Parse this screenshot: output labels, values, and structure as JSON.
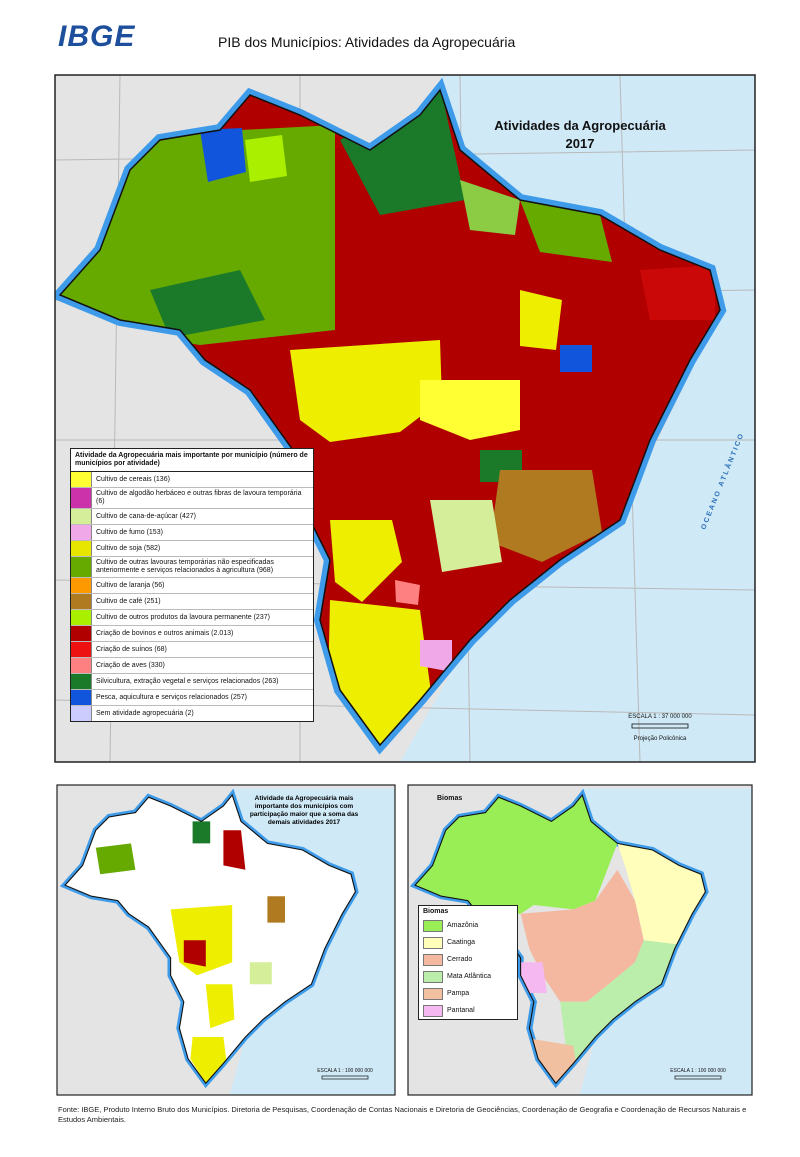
{
  "header": {
    "logo": "IBGE",
    "title": "PIB dos Municípios: Atividades da Agropecuária"
  },
  "main_map": {
    "title": "Atividades da Agropecuária",
    "year": "2017",
    "legend_title": "Atividade da Agropecuária mais importante por município (número de municípios por atividade)",
    "legend": [
      {
        "label": "Cultivo de cereais (136)",
        "color": "#ffff33"
      },
      {
        "label": "Cultivo de algodão herbáceo e outras fibras de lavoura temporária (6)",
        "color": "#cc33aa"
      },
      {
        "label": "Cultivo de cana-de-açúcar (427)",
        "color": "#d4ee9a"
      },
      {
        "label": "Cultivo de fumo (153)",
        "color": "#f0a8e8"
      },
      {
        "label": "Cultivo de soja (582)",
        "color": "#e6e600"
      },
      {
        "label": "Cultivo de outras lavouras temporárias não especificadas anteriormente e serviços relacionados à agricultura (968)",
        "color": "#66aa00"
      },
      {
        "label": "Cultivo de laranja (56)",
        "color": "#ff9900"
      },
      {
        "label": "Cultivo de café (251)",
        "color": "#b07a20"
      },
      {
        "label": "Cultivo de outros produtos da lavoura permanente (237)",
        "color": "#aaee00"
      },
      {
        "label": "Criação de bovinos e outros animais (2.013)",
        "color": "#b00000"
      },
      {
        "label": "Criação de suínos (68)",
        "color": "#ee1111"
      },
      {
        "label": "Criação de aves (330)",
        "color": "#ff8080"
      },
      {
        "label": "Silvicultura, extração vegetal e serviços relacionados (263)",
        "color": "#1a7a2a"
      },
      {
        "label": "Pesca, aquicultura e serviços relacionados (257)",
        "color": "#1155dd"
      },
      {
        "label": "Sem atividade agropecuária (2)",
        "color": "#ccccff"
      }
    ],
    "ocean_label": "OCEANO ATLÂNTICO",
    "scale": "ESCALA 1 : 37 000 000",
    "projection": "Projeção Policônica"
  },
  "inset_map_1": {
    "title": "Atividade da Agropecuária mais importante dos municípios com participação maior que a soma das demais atividades 2017",
    "scale": "ESCALA 1 : 100 000 000"
  },
  "inset_map_2": {
    "title": "Biomas",
    "legend": [
      {
        "label": "Amazônia",
        "color": "#99ee55"
      },
      {
        "label": "Caatinga",
        "color": "#ffffbb"
      },
      {
        "label": "Cerrado",
        "color": "#f4b8a0"
      },
      {
        "label": "Mata Atlântica",
        "color": "#bbeeaa"
      },
      {
        "label": "Pampa",
        "color": "#f0c0a0"
      },
      {
        "label": "Pantanal",
        "color": "#f5b8f0"
      }
    ],
    "scale": "ESCALA 1 : 100 000 000"
  },
  "footer": {
    "source": "Fonte: IBGE, Produto Interno Bruto dos Municípios. Diretoria de Pesquisas, Coordenação de Contas Nacionais e Diretoria de Geociências, Coordenação de Geografia e Coordenação de Recursos Naturais e Estudos Ambientais."
  }
}
